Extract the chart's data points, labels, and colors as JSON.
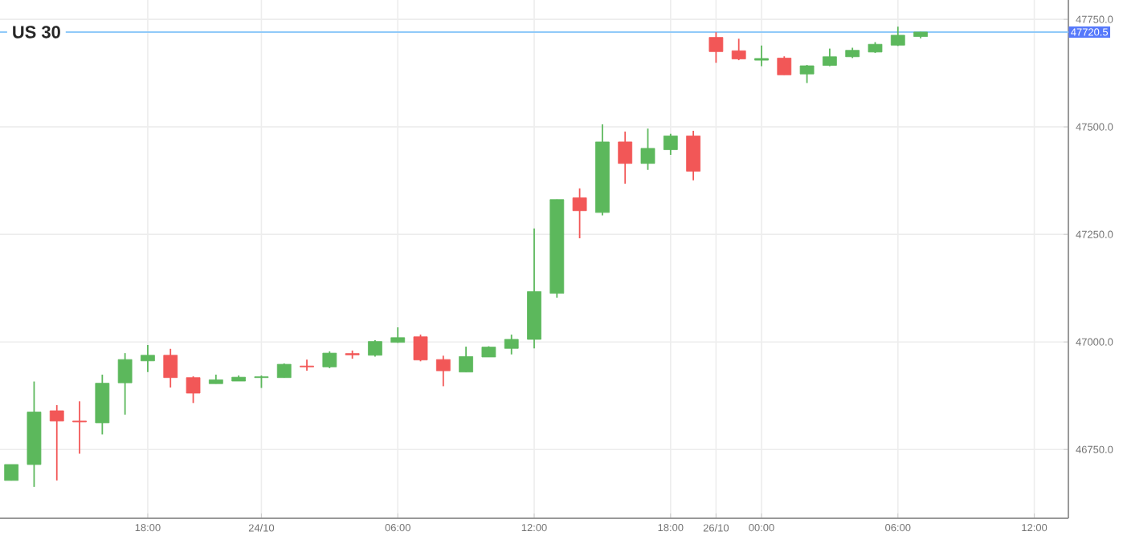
{
  "chart_data": {
    "type": "candlestick",
    "title": "US 30",
    "categories": [
      null,
      null,
      null,
      null,
      null,
      null,
      "18:00",
      null,
      null,
      null,
      null,
      "24/10",
      null,
      null,
      null,
      null,
      null,
      "06:00",
      null,
      null,
      null,
      null,
      null,
      "12:00",
      null,
      null,
      null,
      null,
      null,
      "18:00",
      null,
      "26/10",
      null,
      "00:00",
      null,
      null,
      null,
      null,
      null,
      "06:00",
      null,
      null,
      null,
      null,
      null,
      "12:00",
      null
    ],
    "ohlc": [
      [
        46678,
        46715,
        46678,
        46715
      ],
      [
        46715,
        46908,
        46663,
        46837
      ],
      [
        46840,
        46853,
        46678,
        46816
      ],
      [
        46816,
        46862,
        46740,
        46814
      ],
      [
        46812,
        46924,
        46785,
        46904
      ],
      [
        46905,
        46974,
        46831,
        46959
      ],
      [
        46956,
        46993,
        46930,
        46969
      ],
      [
        46969,
        46984,
        46894,
        46917
      ],
      [
        46917,
        46920,
        46858,
        46881
      ],
      [
        46903,
        46924,
        46903,
        46912
      ],
      [
        46909,
        46922,
        46909,
        46918
      ],
      [
        46917,
        46922,
        46893,
        46919
      ],
      [
        46917,
        46950,
        46917,
        46948
      ],
      [
        46944,
        46959,
        46933,
        46942
      ],
      [
        46942,
        46978,
        46939,
        46974
      ],
      [
        46973,
        46980,
        46961,
        46970
      ],
      [
        46969,
        47004,
        46966,
        47001
      ],
      [
        46999,
        47034,
        46998,
        47010
      ],
      [
        47012,
        47017,
        46955,
        46958
      ],
      [
        46959,
        46968,
        46897,
        46933
      ],
      [
        46930,
        46989,
        46930,
        46966
      ],
      [
        46965,
        46990,
        46965,
        46988
      ],
      [
        46985,
        47017,
        46971,
        47006
      ],
      [
        47006,
        47264,
        46985,
        47117
      ],
      [
        47113,
        47331,
        47103,
        47331
      ],
      [
        47335,
        47357,
        47241,
        47305
      ],
      [
        47301,
        47506,
        47294,
        47465
      ],
      [
        47465,
        47489,
        47368,
        47415
      ],
      [
        47415,
        47496,
        47400,
        47450
      ],
      [
        47447,
        47484,
        47435,
        47479
      ],
      [
        47479,
        47491,
        47376,
        47397
      ],
      [
        47708,
        47720,
        47649,
        47675
      ],
      [
        47677,
        47705,
        47655,
        47658
      ],
      [
        47655,
        47689,
        47641,
        47659
      ],
      [
        47660,
        47664,
        47621,
        47621
      ],
      [
        47623,
        47644,
        47602,
        47642
      ],
      [
        47643,
        47682,
        47641,
        47663
      ],
      [
        47663,
        47684,
        47660,
        47678
      ],
      [
        47674,
        47697,
        47672,
        47692
      ],
      [
        47690,
        47733,
        47688,
        47713
      ],
      [
        47710,
        47721,
        47706,
        47720.5
      ],
      null,
      null,
      null,
      null,
      null,
      null
    ],
    "colors": [
      "#5cb85c",
      "#5cb85c",
      "#f25757",
      "#f25757",
      "#5cb85c",
      "#5cb85c",
      "#5cb85c",
      "#f25757",
      "#f25757",
      "#5cb85c",
      "#5cb85c",
      "#5cb85c",
      "#5cb85c",
      "#f25757",
      "#5cb85c",
      "#f25757",
      "#5cb85c",
      "#5cb85c",
      "#f25757",
      "#f25757",
      "#5cb85c",
      "#5cb85c",
      "#5cb85c",
      "#5cb85c",
      "#5cb85c",
      "#f25757",
      "#5cb85c",
      "#f25757",
      "#5cb85c",
      "#5cb85c",
      "#f25757",
      "#f25757",
      "#f25757",
      "#5cb85c",
      "#f25757",
      "#5cb85c",
      "#5cb85c",
      "#5cb85c",
      "#5cb85c",
      "#5cb85c",
      "#5cb85c",
      null,
      null,
      null,
      null,
      null,
      null
    ],
    "ylim": [
      46590,
      47795
    ],
    "yticks": [
      {
        "value": 46750,
        "label": "46750.0"
      },
      {
        "value": 47000,
        "label": "47000.0"
      },
      {
        "value": 47250,
        "label": "47250.0"
      },
      {
        "value": 47500,
        "label": "47500.0"
      },
      {
        "value": 47750,
        "label": "47750.0"
      }
    ],
    "ref_lines": [
      {
        "axis": "y",
        "value": 47720.5,
        "label": "47720.5",
        "color": "#90caf9"
      }
    ],
    "grid": true
  }
}
